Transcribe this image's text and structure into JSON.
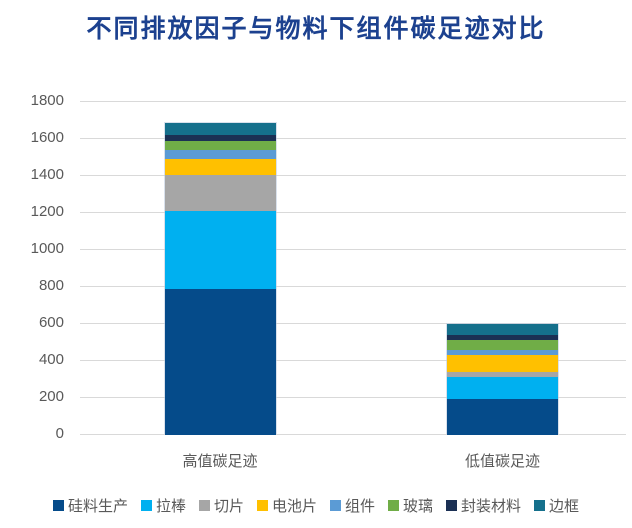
{
  "chart_data": {
    "type": "bar",
    "stacked": true,
    "title": "不同排放因子与物料下组件碳足迹对比",
    "categories": [
      "高值碳足迹",
      "低值碳足迹"
    ],
    "series": [
      {
        "name": "硅料生产",
        "color": "#054B8A",
        "values": [
          790,
          195
        ]
      },
      {
        "name": "拉棒",
        "color": "#00B0F0",
        "values": [
          420,
          118
        ]
      },
      {
        "name": "切片",
        "color": "#A6A6A6",
        "values": [
          195,
          25
        ]
      },
      {
        "name": "电池片",
        "color": "#FFC000",
        "values": [
          85,
          92
        ]
      },
      {
        "name": "组件",
        "color": "#5B9BD5",
        "values": [
          50,
          32
        ]
      },
      {
        "name": "玻璃",
        "color": "#70AD47",
        "values": [
          50,
          50
        ]
      },
      {
        "name": "封装材料",
        "color": "#1B3054",
        "values": [
          30,
          26
        ]
      },
      {
        "name": "边框",
        "color": "#15708C",
        "values": [
          65,
          62
        ]
      }
    ],
    "totals": [
      1685,
      600
    ],
    "xlabel": "",
    "ylabel": "",
    "ylim": [
      0,
      1800
    ],
    "yticks": [
      0,
      200,
      400,
      600,
      800,
      1000,
      1200,
      1400,
      1600,
      1800
    ],
    "grid": true,
    "legend_position": "bottom"
  },
  "style": {
    "title_color": "#1C418F",
    "axis_text_color": "#595959",
    "gridline_color": "#D9D9D9",
    "background": "#FFFFFF"
  }
}
